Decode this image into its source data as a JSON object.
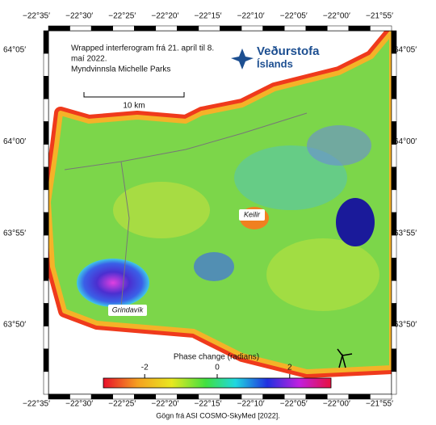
{
  "header": {
    "lines": [
      "Wrapped interferogram frá 21. apríl til 8.",
      "maí 2022.",
      "Myndvinnsla Michelle Parks"
    ]
  },
  "logo": {
    "lines": [
      "Veðurstofa",
      "Íslands"
    ]
  },
  "scale_bar": "10 km",
  "places": [
    "Keilir",
    "Grindavík"
  ],
  "axes": {
    "lon_labels": [
      "−22°35′",
      "−22°30′",
      "−22°25′",
      "−22°20′",
      "−22°15′",
      "−22°10′",
      "−22°05′",
      "−22°00′",
      "−21°55′"
    ],
    "lat_labels": [
      "64°05′",
      "64°00′",
      "63°55′",
      "63°50′"
    ]
  },
  "colorbar": {
    "label": "Phase change (radians)",
    "ticks": [
      -2,
      0,
      2
    ],
    "lim": [
      -3.14,
      3.14
    ]
  },
  "credit": "Gögn frá ASI COSMO-SkyMed [2022]."
}
